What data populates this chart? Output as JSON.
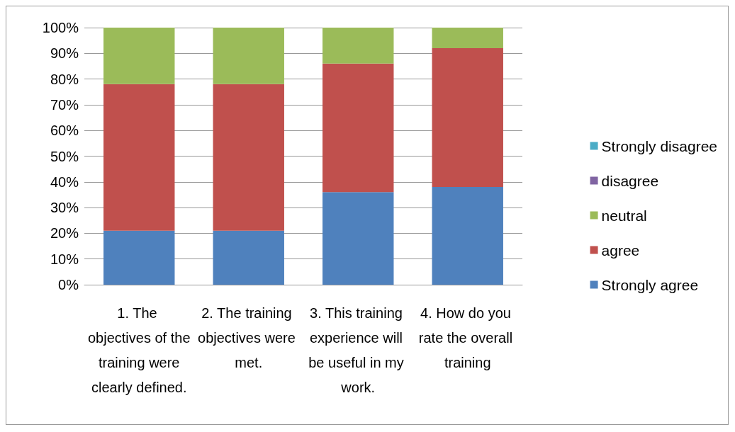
{
  "chart_data": {
    "type": "bar",
    "stacked": true,
    "categories": [
      "1. The objectives of the training were clearly defined.",
      "2. The training objectives were met.",
      "3. This training experience will be useful in my work.",
      "4. How do you rate the overall training"
    ],
    "series": [
      {
        "name": "Strongly agree",
        "color": "#4f81bd",
        "values": [
          21,
          21,
          36,
          38
        ]
      },
      {
        "name": "agree",
        "color": "#c0504d",
        "values": [
          57,
          57,
          50,
          54
        ]
      },
      {
        "name": "neutral",
        "color": "#9bbb59",
        "values": [
          22,
          22,
          14,
          8
        ]
      },
      {
        "name": "disagree",
        "color": "#8064a2",
        "values": [
          0,
          0,
          0,
          0
        ]
      },
      {
        "name": "Strongly disagree",
        "color": "#4bacc6",
        "values": [
          0,
          0,
          0,
          0
        ]
      }
    ],
    "ylim": [
      0,
      100
    ],
    "yticks": [
      {
        "value": 0,
        "label": "0%"
      },
      {
        "value": 10,
        "label": "10%"
      },
      {
        "value": 20,
        "label": "20%"
      },
      {
        "value": 30,
        "label": "30%"
      },
      {
        "value": 40,
        "label": "40%"
      },
      {
        "value": 50,
        "label": "50%"
      },
      {
        "value": 60,
        "label": "60%"
      },
      {
        "value": 70,
        "label": "70%"
      },
      {
        "value": 80,
        "label": "80%"
      },
      {
        "value": 90,
        "label": "90%"
      },
      {
        "value": 100,
        "label": "100%"
      }
    ],
    "grid": "y",
    "legend": "right"
  }
}
